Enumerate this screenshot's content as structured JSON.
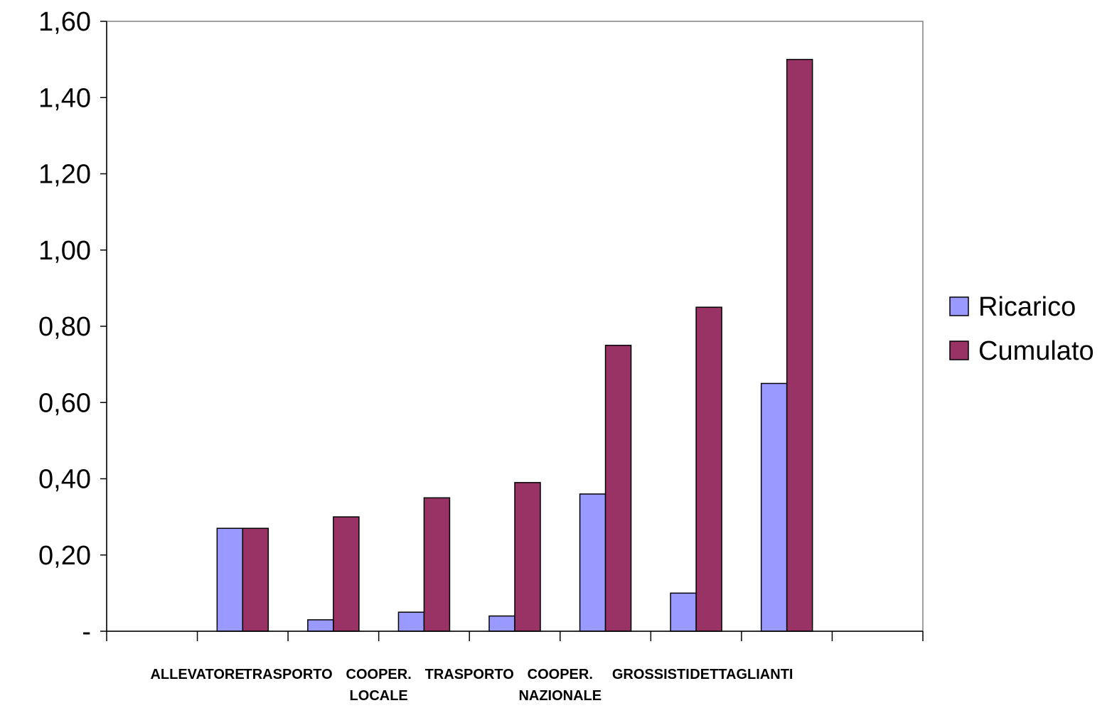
{
  "chart_data": {
    "type": "bar",
    "categories": [
      "",
      "ALLEVATORE",
      "TRASPORTO",
      "COOPER. LOCALE",
      "TRASPORTO",
      "COOPER. NAZIONALE",
      "GROSSISTI",
      "DETTAGLIANTI",
      ""
    ],
    "category_lines": [
      [],
      [
        "ALLEVATORE"
      ],
      [
        "TRASPORTO"
      ],
      [
        "COOPER.",
        "LOCALE"
      ],
      [
        "TRASPORTO"
      ],
      [
        "COOPER.",
        "NAZIONALE"
      ],
      [
        "GROSSISTI"
      ],
      [
        "DETTAGLIANTI"
      ],
      []
    ],
    "series": [
      {
        "name": "Ricarico",
        "color": "#9999ff",
        "values": [
          null,
          0.27,
          0.03,
          0.05,
          0.04,
          0.36,
          0.1,
          0.65,
          null
        ]
      },
      {
        "name": "Cumulato",
        "color": "#993366",
        "values": [
          null,
          0.27,
          0.3,
          0.35,
          0.39,
          0.75,
          0.85,
          1.5,
          null
        ]
      }
    ],
    "ylim": [
      0,
      1.6
    ],
    "yticks": [
      0,
      0.2,
      0.4,
      0.6,
      0.8,
      1.0,
      1.2,
      1.4,
      1.6
    ],
    "ytick_labels": [
      "-",
      "0,20",
      "0,40",
      "0,60",
      "0,80",
      "1,00",
      "1,20",
      "1,40",
      "1,60"
    ],
    "grid": false,
    "legend_position": "right",
    "title": "",
    "xlabel": "",
    "ylabel": ""
  }
}
